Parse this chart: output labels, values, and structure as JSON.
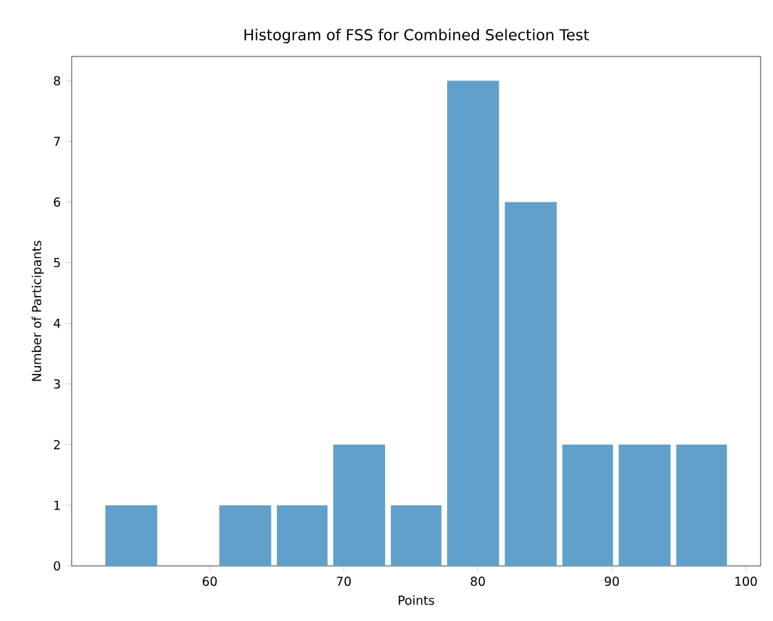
{
  "chart_data": {
    "type": "histogram",
    "title": "Histogram of FSS for Combined Selection Test",
    "xlabel": "Points",
    "ylabel": "Number of Participants",
    "bins": [
      52,
      56.3,
      60.5,
      64.8,
      69,
      73.3,
      77.5,
      81.8,
      86.1,
      90.3,
      94.6,
      98.8
    ],
    "values": [
      1,
      0,
      1,
      1,
      2,
      1,
      8,
      6,
      2,
      2,
      2
    ],
    "color": "#60a0cb",
    "xlim": [
      49.7,
      101.1
    ],
    "ylim": [
      0,
      8.4
    ],
    "xticks": [
      60,
      70,
      80,
      90,
      100
    ],
    "yticks": [
      0,
      1,
      2,
      3,
      4,
      5,
      6,
      7,
      8
    ],
    "grid": false
  }
}
